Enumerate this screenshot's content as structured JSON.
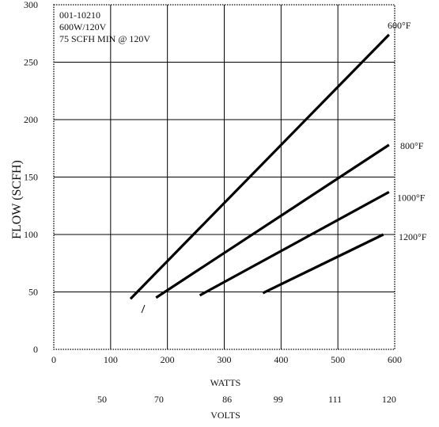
{
  "chart_data": {
    "type": "line",
    "ylabel": "FLOW (SCFH)",
    "xlabel": "WATTS",
    "secondary_xlabel": "VOLTS",
    "xlim": [
      0,
      600
    ],
    "ylim": [
      0,
      300
    ],
    "x_ticks": [
      "0",
      "100",
      "200",
      "300",
      "400",
      "500",
      "600"
    ],
    "y_ticks": [
      "0",
      "50",
      "100",
      "150",
      "200",
      "250",
      "300"
    ],
    "volts_ticks": [
      {
        "watts": 85,
        "label": "50"
      },
      {
        "watts": 185,
        "label": "70"
      },
      {
        "watts": 305,
        "label": "86"
      },
      {
        "watts": 395,
        "label": "99"
      },
      {
        "watts": 495,
        "label": "111"
      },
      {
        "watts": 590,
        "label": "120"
      }
    ],
    "annotations": [
      "001-10210",
      "600W/120V",
      "75 SCFH MIN @ 120V"
    ],
    "grid": true,
    "series": [
      {
        "name": "600°F",
        "points": [
          [
            135,
            44
          ],
          [
            590,
            274
          ]
        ]
      },
      {
        "name": "800°F",
        "points": [
          [
            180,
            45
          ],
          [
            590,
            178
          ]
        ]
      },
      {
        "name": "1000°F",
        "points": [
          [
            257,
            47
          ],
          [
            590,
            137
          ]
        ]
      },
      {
        "name": "1200°F",
        "points": [
          [
            368,
            49
          ],
          [
            580,
            100
          ]
        ]
      }
    ]
  }
}
